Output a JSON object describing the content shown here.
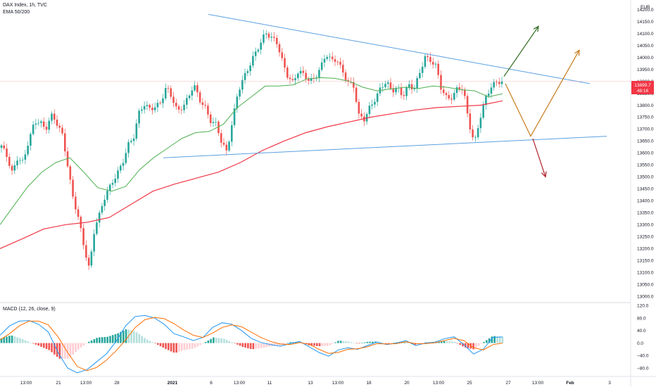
{
  "header": {
    "symbol": "DAX Index, 1h, TVC",
    "indicator": "EMA 50/200",
    "macd_label": "MACD (12, 26, close, 9)",
    "currency": "EUR"
  },
  "price_tag": {
    "value": "13899.7",
    "countdown": "48:16"
  },
  "colors": {
    "up": "#26a69a",
    "down": "#ef5350",
    "ema50": "#4caf50",
    "ema200": "#f23645",
    "trendline": "#5aa0e0",
    "arrow_up_green": "#2e6b1f",
    "arrow_orange": "#c77b1a",
    "arrow_down_red": "#b0202a",
    "macd_line": "#2196f3",
    "signal_line": "#ff6d00"
  },
  "x_axis": {
    "labels": [
      "13:00",
      "21",
      "13:00",
      "28",
      "2021",
      "6",
      "13:00",
      "11",
      "13",
      "13:00",
      "18",
      "20",
      "13:00",
      "25",
      "27",
      "13:00",
      "Feb",
      "3"
    ]
  },
  "chart_data": [
    {
      "type": "candlestick",
      "title": "DAX Index, 1h, TVC",
      "indicator": "EMA 50/200",
      "unit": "EUR",
      "ylim": [
        12980,
        14240
      ],
      "y_ticks": [
        14200,
        14150,
        14100,
        14050,
        14000,
        13950,
        13900,
        13850,
        13800,
        13750,
        13700,
        13650,
        13600,
        13550,
        13500,
        13450,
        13400,
        13350,
        13300,
        13250,
        13200,
        13150,
        13100,
        13050,
        13000
      ],
      "y_tick_labels": [
        "14200.0",
        "14150.0",
        "14100.0",
        "14050.0",
        "14000.0",
        "13950.0",
        "13900.0",
        "13850.0",
        "13800.0",
        "13750.0",
        "13700.0",
        "13650.0",
        "13600.0",
        "13550.0",
        "13500.0",
        "13450.0",
        "13400.0",
        "13350.0",
        "13300.0",
        "13250.0",
        "13200.0",
        "13150.0",
        "13100.0",
        "13050.0",
        "13000.0"
      ],
      "price_path": [
        13625,
        13580,
        13520,
        13590,
        13560,
        13650,
        13720,
        13740,
        13700,
        13760,
        13720,
        13680,
        13560,
        13420,
        13330,
        13200,
        13110,
        13300,
        13360,
        13430,
        13460,
        13510,
        13560,
        13640,
        13660,
        13760,
        13800,
        13790,
        13800,
        13810,
        13870,
        13830,
        13780,
        13800,
        13830,
        13880,
        13820,
        13800,
        13740,
        13720,
        13640,
        13600,
        13740,
        13860,
        13910,
        13950,
        14010,
        14060,
        14110,
        14080,
        14060,
        13990,
        13930,
        13900,
        13940,
        13920,
        13900,
        13920,
        13960,
        14010,
        13980,
        13990,
        13950,
        13900,
        13880,
        13750,
        13740,
        13800,
        13830,
        13870,
        13890,
        13860,
        13880,
        13840,
        13880,
        13860,
        13930,
        14010,
        13990,
        13960,
        13860,
        13830,
        13840,
        13880,
        13860,
        13720,
        13640,
        13750,
        13830,
        13870,
        13890,
        13899.7
      ],
      "ema50": [
        13300,
        13380,
        13460,
        13520,
        13560,
        13580,
        13520,
        13455,
        13440,
        13460,
        13530,
        13580,
        13620,
        13660,
        13685,
        13690,
        13720,
        13790,
        13835,
        13880,
        13880,
        13885,
        13910,
        13915,
        13912,
        13900,
        13875,
        13860,
        13868,
        13875,
        13870,
        13880,
        13875,
        13865,
        13860,
        13835,
        13848
      ],
      "ema200": [
        13200,
        13240,
        13282,
        13300,
        13310,
        13330,
        13385,
        13440,
        13470,
        13495,
        13520,
        13560,
        13610,
        13650,
        13685,
        13710,
        13730,
        13750,
        13765,
        13780,
        13790,
        13795,
        13800,
        13818
      ],
      "trendlines": [
        {
          "name": "upper",
          "from": [
            "Dec 30",
            14180
          ],
          "to": [
            "Jan 29",
            13890
          ]
        },
        {
          "name": "lower",
          "from": [
            "Jan 4",
            13580
          ],
          "to": [
            "Jan 29",
            13670
          ]
        }
      ],
      "projections": [
        {
          "name": "breakout-up",
          "from": 13920,
          "to": 14130
        },
        {
          "name": "dip-then-rally",
          "path": [
            13890,
            13670,
            14030
          ]
        },
        {
          "name": "breakdown",
          "from": 13660,
          "to": 13500
        }
      ],
      "last_price": 13899.7
    },
    {
      "type": "macd",
      "title": "MACD (12, 26, close, 9)",
      "ylim": [
        -100,
        125
      ],
      "y_ticks": [
        120,
        80,
        40,
        0,
        -40,
        -80
      ],
      "y_tick_labels": [
        "120.0",
        "80.0",
        "40.0",
        "0.0",
        "−40.0",
        "−80.0"
      ],
      "macd": [
        25,
        55,
        70,
        72,
        60,
        35,
        -30,
        -80,
        -95,
        -85,
        -60,
        -35,
        5,
        55,
        85,
        88,
        80,
        60,
        30,
        20,
        8,
        18,
        50,
        65,
        60,
        40,
        15,
        2,
        -5,
        -10,
        -2,
        5,
        -12,
        -30,
        -42,
        -22,
        -15,
        -20,
        -8,
        3,
        -5,
        0,
        8,
        -8,
        0,
        3,
        14,
        20,
        -5,
        -35,
        -20,
        18,
        20
      ],
      "signal": [
        10,
        30,
        55,
        70,
        70,
        58,
        20,
        -30,
        -75,
        -88,
        -78,
        -55,
        -25,
        10,
        50,
        75,
        82,
        78,
        62,
        42,
        25,
        18,
        32,
        50,
        58,
        52,
        35,
        18,
        5,
        -3,
        -5,
        2,
        -4,
        -20,
        -33,
        -30,
        -20,
        -18,
        -12,
        -2,
        -3,
        -2,
        4,
        -2,
        -2,
        1,
        8,
        15,
        8,
        -15,
        -22,
        -5,
        0
      ],
      "histogram_sample": [
        15,
        25,
        15,
        2,
        -10,
        -23,
        -50,
        -50,
        -20,
        3,
        18,
        20,
        30,
        45,
        35,
        13,
        -2,
        -18,
        -32,
        -22,
        -17,
        0,
        18,
        15,
        2,
        -12,
        -20,
        -16,
        -10,
        -7,
        3,
        3,
        -8,
        -10,
        -9,
        8,
        5,
        -2,
        4,
        5,
        -2,
        2,
        4,
        -6,
        2,
        2,
        6,
        5,
        -13,
        -20,
        2,
        23,
        20
      ]
    }
  ]
}
